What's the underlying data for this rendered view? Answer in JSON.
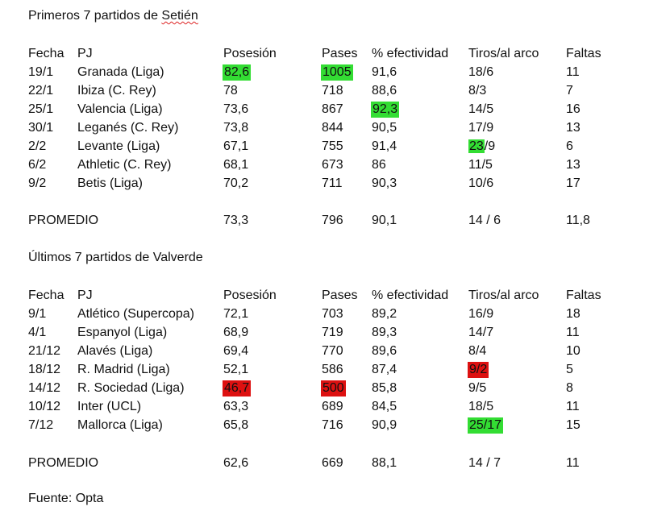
{
  "colors": {
    "good": "#33dd33",
    "bad": "#dd1111"
  },
  "setien": {
    "title_prefix": "Primeros 7 partidos de ",
    "title_name": "Setién",
    "headers": [
      "Fecha",
      "PJ",
      "Posesión",
      "Pases",
      "% efectividad",
      "Tiros/al arco",
      "Faltas"
    ],
    "rows": [
      [
        "19/1",
        "Granada (Liga)",
        "82,6",
        "1005",
        "91,6",
        "18/6",
        "11"
      ],
      [
        "22/1",
        "Ibiza (C. Rey)",
        "78",
        "718",
        "88,6",
        "8/3",
        "7"
      ],
      [
        "25/1",
        "Valencia (Liga)",
        "73,6",
        "867",
        "92,3",
        "14/5",
        "16"
      ],
      [
        "30/1",
        "Leganés (C. Rey)",
        "73,8",
        "844",
        "90,5",
        "17/9",
        "13"
      ],
      [
        "2/2",
        "Levante (Liga)",
        "67,1",
        "755",
        "91,4",
        "23/9",
        "6"
      ],
      [
        "6/2",
        "Athletic (C. Rey)",
        "68,1",
        "673",
        "86",
        "11/5",
        "13"
      ],
      [
        "9/2",
        "Betis (Liga)",
        "70,2",
        "711",
        "90,3",
        "10/6",
        "17"
      ]
    ],
    "average": [
      "PROMEDIO",
      "",
      "73,3",
      "796",
      "90,1",
      "14 / 6",
      "11,8"
    ]
  },
  "valverde": {
    "title": "Últimos 7 partidos de Valverde",
    "headers": [
      "Fecha",
      "PJ",
      "Posesión",
      "Pases",
      "% efectividad",
      "Tiros/al arco",
      "Faltas"
    ],
    "rows": [
      [
        "9/1",
        "Atlético (Supercopa)",
        "72,1",
        "703",
        "89,2",
        "16/9",
        "18"
      ],
      [
        "4/1",
        "Espanyol (Liga)",
        "68,9",
        "719",
        "89,3",
        "14/7",
        "11"
      ],
      [
        "21/12",
        "Alavés (Liga)",
        "69,4",
        "770",
        "89,6",
        "8/4",
        "10"
      ],
      [
        "18/12",
        "R. Madrid (Liga)",
        "52,1",
        "586",
        "87,4",
        "9/2",
        "5"
      ],
      [
        "14/12",
        "R. Sociedad (Liga)",
        "46,7",
        "500",
        "85,8",
        "9/5",
        "8"
      ],
      [
        "10/12",
        "Inter (UCL)",
        "63,3",
        "689",
        "84,5",
        "18/5",
        "11"
      ],
      [
        "7/12",
        "Mallorca (Liga)",
        "65,8",
        "716",
        "90,9",
        "25/17",
        "15"
      ]
    ],
    "average": [
      "PROMEDIO",
      "",
      "62,6",
      "669",
      "88,1",
      "14 / 7",
      "11"
    ]
  },
  "footer": {
    "source": "Fuente:  Opta"
  }
}
